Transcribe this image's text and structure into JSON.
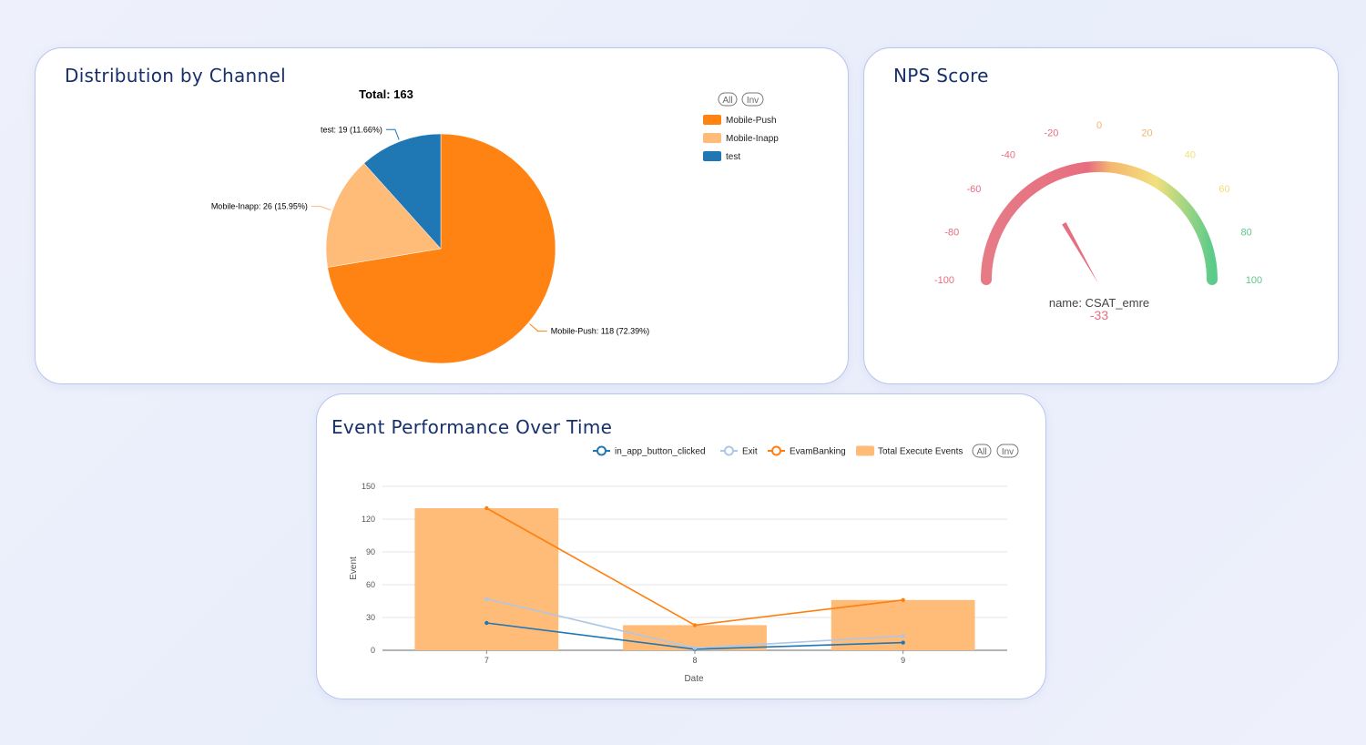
{
  "pie_card": {
    "title": "Distribution by Channel",
    "total_label": "Total: 163",
    "toggle_all": "All",
    "toggle_inv": "Inv",
    "colors": {
      "Mobile-Push": "#ff8312",
      "Mobile-Inapp": "#ffbb78",
      "test": "#1f77b4"
    }
  },
  "nps_card": {
    "title": "NPS Score",
    "name_label": "name: CSAT_emre",
    "value_label": "-33"
  },
  "event_card": {
    "title": "Event Performance Over Time",
    "toggle_all": "All",
    "toggle_inv": "Inv"
  },
  "chart_data": [
    {
      "type": "pie",
      "title": "Total: 163",
      "legend_placement": "top-right",
      "categories": [
        "Mobile-Push",
        "Mobile-Inapp",
        "test"
      ],
      "values": [
        118,
        26,
        19
      ],
      "labels": [
        "Mobile-Push: 118 (72.39%)",
        "Mobile-Inapp: 26 (15.95%)",
        "test: 19 (11.66%)"
      ]
    },
    {
      "type": "gauge",
      "min": -100,
      "max": 100,
      "ticks": [
        -100,
        -80,
        -60,
        -40,
        -20,
        0,
        20,
        40,
        60,
        80,
        100
      ],
      "value": -33,
      "series_name": "CSAT_emre"
    },
    {
      "type": "bar",
      "xlabel": "Date",
      "ylabel": "Event",
      "categories": [
        "7",
        "8",
        "9"
      ],
      "ylim": [
        0,
        150
      ],
      "yticks": [
        0,
        30,
        60,
        90,
        120,
        150
      ],
      "grid": true,
      "legend_placement": "top-right",
      "series": [
        {
          "name": "Total Execute Events",
          "type": "bar",
          "color": "#ffbb78",
          "values": [
            130,
            23,
            46
          ]
        },
        {
          "name": "in_app_button_clicked",
          "type": "line",
          "color": "#1f77b4",
          "values": [
            25,
            1,
            7
          ]
        },
        {
          "name": "Exit",
          "type": "line",
          "color": "#aec7e8",
          "values": [
            47,
            2,
            13
          ]
        },
        {
          "name": "EvamBanking",
          "type": "line",
          "color": "#ff7f0e",
          "values": [
            130,
            23,
            46
          ]
        }
      ]
    }
  ]
}
